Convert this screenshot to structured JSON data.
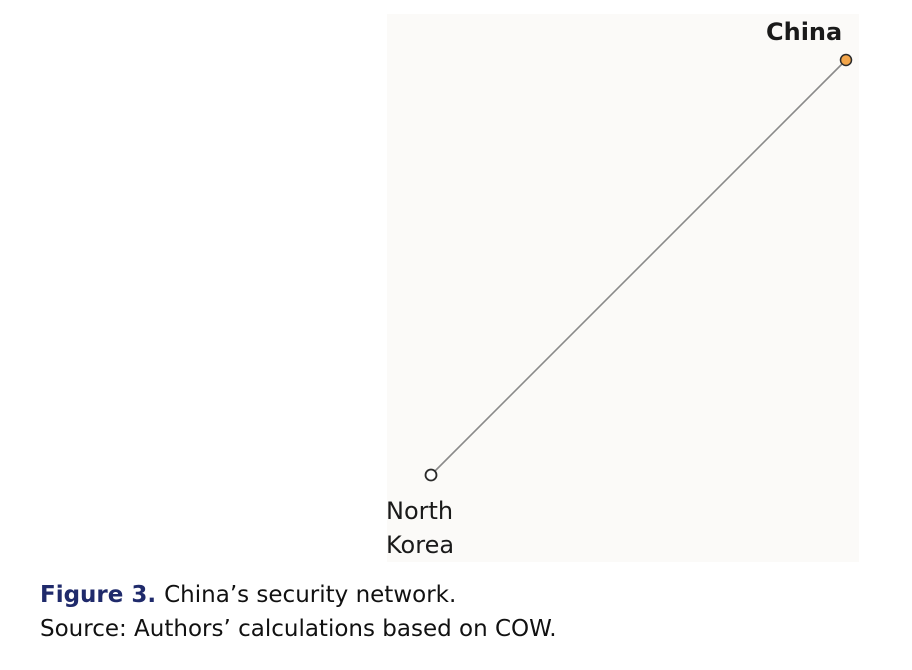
{
  "nodes": [
    {
      "id": "china",
      "label": "China",
      "fill": "#f2a54a",
      "stroke": "#2a2a2a"
    },
    {
      "id": "north-korea",
      "label_lines": [
        "North",
        "Korea"
      ],
      "fill": "#ffffff",
      "stroke": "#2a2a2a"
    }
  ],
  "edges": [
    {
      "from": "north-korea",
      "to": "china",
      "color": "#8a8a8a"
    }
  ],
  "caption": {
    "figure_label": "Figure 3.",
    "title": "China’s security network.",
    "source": "Source: Authors’ calculations based on COW."
  },
  "colors": {
    "panel_background": "#fbfaf8",
    "figure_label": "#1f2a6b"
  }
}
